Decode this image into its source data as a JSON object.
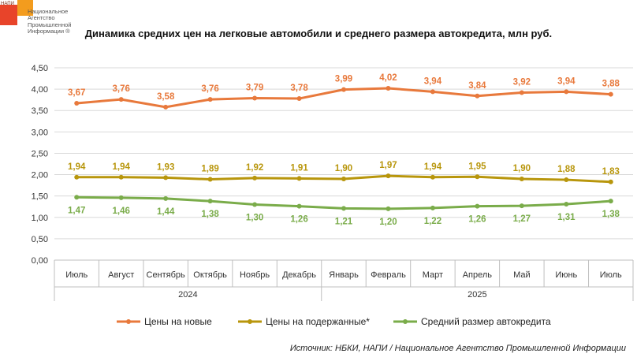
{
  "logo": {
    "abbr": "НАПИ",
    "lines": [
      "Национальное",
      "Агентство",
      "Промышленной",
      "Информации ®"
    ]
  },
  "colors": {
    "new": "#e8793c",
    "used": "#b8960c",
    "credit": "#7aac4a",
    "grid": "#d9d9d9",
    "axis_text": "#333333"
  },
  "chart_data": {
    "type": "line",
    "title": "Динамика средних цен на легковые автомобили и среднего размера автокредита, млн руб.",
    "categories": [
      "Июль",
      "Август",
      "Сентябрь",
      "Октябрь",
      "Ноябрь",
      "Декабрь",
      "Январь",
      "Февраль",
      "Март",
      "Апрель",
      "Май",
      "Июнь",
      "Июль"
    ],
    "year_groups": [
      {
        "label": "2024",
        "count": 6
      },
      {
        "label": "2025",
        "count": 7
      }
    ],
    "yticks": [
      "0,00",
      "0,50",
      "1,00",
      "1,50",
      "2,00",
      "2,50",
      "3,00",
      "3,50",
      "4,00",
      "4,50"
    ],
    "ylim": [
      0,
      4.5
    ],
    "grid": true,
    "legend_position": "bottom",
    "series": [
      {
        "name": "Цены на новые",
        "values": [
          3.67,
          3.76,
          3.58,
          3.76,
          3.79,
          3.78,
          3.99,
          4.02,
          3.94,
          3.84,
          3.92,
          3.94,
          3.88
        ],
        "labels": [
          "3,67",
          "3,76",
          "3,58",
          "3,76",
          "3,79",
          "3,78",
          "3,99",
          "4,02",
          "3,94",
          "3,84",
          "3,92",
          "3,94",
          "3,88"
        ],
        "label_pos": "above"
      },
      {
        "name": "Цены на подержанные*",
        "values": [
          1.94,
          1.94,
          1.93,
          1.89,
          1.92,
          1.91,
          1.9,
          1.97,
          1.94,
          1.95,
          1.9,
          1.88,
          1.83
        ],
        "labels": [
          "1,94",
          "1,94",
          "1,93",
          "1,89",
          "1,92",
          "1,91",
          "1,90",
          "1,97",
          "1,94",
          "1,95",
          "1,90",
          "1,88",
          "1,83"
        ],
        "label_pos": "above"
      },
      {
        "name": "Средний размер автокредита",
        "values": [
          1.47,
          1.46,
          1.44,
          1.38,
          1.3,
          1.26,
          1.21,
          1.2,
          1.22,
          1.26,
          1.27,
          1.31,
          1.38
        ],
        "labels": [
          "1,47",
          "1,46",
          "1,44",
          "1,38",
          "1,30",
          "1,26",
          "1,21",
          "1,20",
          "1,22",
          "1,26",
          "1,27",
          "1,31",
          "1,38"
        ],
        "label_pos": "below"
      }
    ]
  },
  "source": "Источник: НБКИ, НАПИ / Национальное Агентство Промышленной Информации"
}
